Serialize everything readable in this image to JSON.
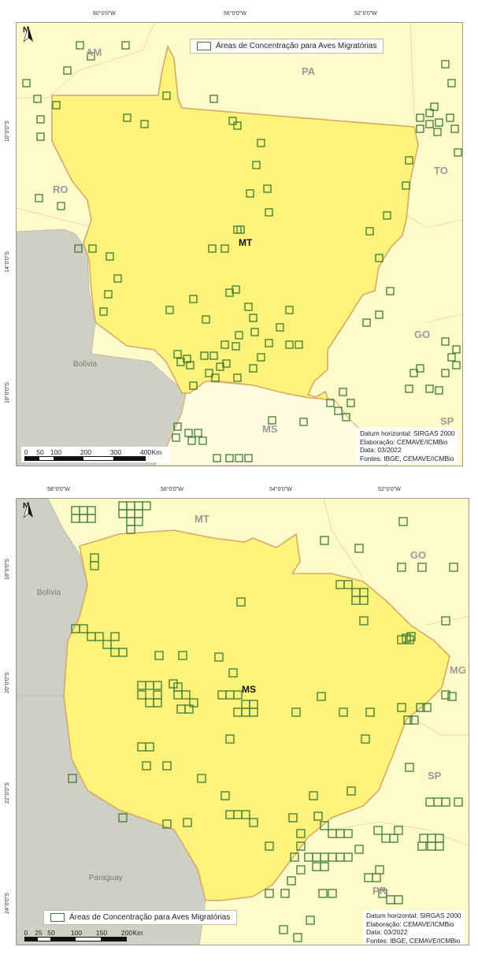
{
  "colors": {
    "focus_state": "#fdf27a",
    "neighbor_state": "#fffbc9",
    "foreign": "#cfcfc4",
    "border": "#d7a86b",
    "grid_cell": "#3e7a34",
    "state_label": "#9b9b9b"
  },
  "maps": [
    {
      "id": "mt",
      "north_label": "N",
      "lon_labels": [
        "60°0'0\"W",
        "56°0'0\"W",
        "52°0'0\"W"
      ],
      "lat_labels": [
        "10°0'0\"S",
        "14°0'0\"S",
        "18°0'0\"S"
      ],
      "legend_label": "Áreas de Concentração para Aves Migratórias",
      "focus_label": "MT",
      "neighbor_labels": [
        "AM",
        "PA",
        "RO",
        "TO",
        "GO",
        "MS",
        "SP"
      ],
      "country_labels": [
        "Bolívia"
      ],
      "credits": [
        "Datum horizontal: SIRGAS 2000",
        "Elaboração: CEMAVE/ICMBio",
        "Data: 03/2022",
        "Fontes: IBGE, CEMAVE/ICMBio"
      ],
      "scale_ticks": [
        "0",
        "50",
        "100",
        "200",
        "300",
        "400"
      ],
      "scale_unit": "Km"
    },
    {
      "id": "ms",
      "north_label": "N",
      "lon_labels": [
        "58°0'0\"W",
        "56°0'0\"W",
        "54°0'0\"W",
        "52°0'0\"W"
      ],
      "lat_labels": [
        "18°0'0\"S",
        "20°0'0\"S",
        "22°0'0\"S",
        "24°0'0\"S"
      ],
      "legend_label": "Áreas de Concentração para Aves Migratórias",
      "focus_label": "MS",
      "neighbor_labels": [
        "MT",
        "GO",
        "MG",
        "SP",
        "PR"
      ],
      "country_labels": [
        "Bolívia",
        "Paraguay"
      ],
      "credits": [
        "Datum horizontal: SIRGAS 2000",
        "Elaboração: CEMAVE/ICMBio",
        "Data: 03/2022",
        "Fontes: IBGE, CEMAVE/ICMBio"
      ],
      "scale_ticks": [
        "0",
        "25",
        "50",
        "100",
        "150",
        "200"
      ],
      "scale_unit": "Km"
    }
  ]
}
